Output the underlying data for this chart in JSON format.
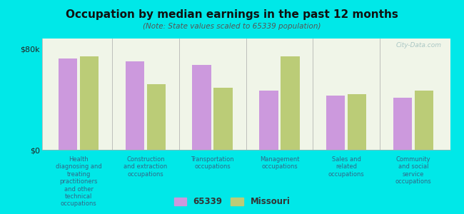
{
  "title": "Occupation by median earnings in the past 12 months",
  "subtitle": "(Note: State values scaled to 65339 population)",
  "background_color": "#00e8e8",
  "plot_bg_top": "#f0f5e8",
  "plot_bg_bottom": "#e8f0d8",
  "categories": [
    "Health\ndiagnosing and\ntreating\npractitioners\nand other\ntechnical\noccupations",
    "Construction\nand extraction\noccupations",
    "Transportation\noccupations",
    "Management\noccupations",
    "Sales and\nrelated\noccupations",
    "Community\nand social\nservice\noccupations"
  ],
  "values_65339": [
    72000,
    70000,
    67000,
    47000,
    43000,
    41000
  ],
  "values_missouri": [
    74000,
    52000,
    49000,
    74000,
    44000,
    47000
  ],
  "color_65339": "#cc99dd",
  "color_missouri": "#bbcc77",
  "ylim": [
    0,
    88000
  ],
  "yticks": [
    0,
    80000
  ],
  "ytick_labels": [
    "$0",
    "$80k"
  ],
  "legend_label_65339": "65339",
  "legend_label_missouri": "Missouri",
  "watermark": "City-Data.com"
}
